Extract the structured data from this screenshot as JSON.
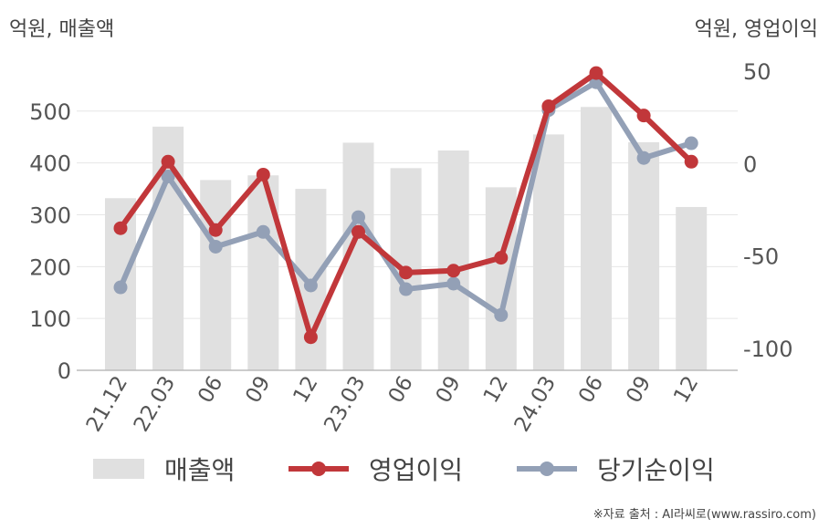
{
  "units": {
    "left": "억원, 매출액",
    "right": "억원, 영업이익"
  },
  "legend": {
    "sales": "매출액",
    "operating_income": "영업이익",
    "net_income": "당기순이익"
  },
  "source": "※자료 출처 : AI라씨로(www.rassiro.com)",
  "colors": {
    "bar": "#e0e0e0",
    "operating_income": "#c1373a",
    "net_income": "#93a0b6",
    "axis_text": "#555555",
    "grid": "#e6e6e6"
  },
  "chart_data": {
    "type": "bar+line",
    "categories": [
      "21.12",
      "22.03",
      "06",
      "09",
      "12",
      "23.03",
      "06",
      "09",
      "12",
      "24.03",
      "06",
      "09",
      "12"
    ],
    "left_axis": {
      "ticks": [
        0,
        100,
        200,
        300,
        400,
        500
      ],
      "range": [
        0,
        570
      ]
    },
    "right_axis": {
      "ticks": [
        50,
        0,
        -50,
        -100
      ],
      "range": [
        -105,
        52
      ]
    },
    "series": [
      {
        "name": "매출액",
        "type": "bar",
        "axis": "left",
        "values": [
          332,
          470,
          367,
          376,
          350,
          439,
          390,
          424,
          353,
          455,
          508,
          440,
          315
        ]
      },
      {
        "name": "영업이익",
        "type": "line",
        "axis": "right",
        "values": [
          -35,
          1,
          -36,
          -6,
          -94,
          -37,
          -59,
          -58,
          -51,
          31,
          49,
          26,
          1
        ]
      },
      {
        "name": "당기순이익",
        "type": "line",
        "axis": "right",
        "values": [
          -67,
          -7,
          -45,
          -37,
          -66,
          -29,
          -68,
          -65,
          -82,
          29,
          44,
          3,
          11
        ]
      }
    ],
    "grid": true,
    "legend_position": "bottom"
  }
}
